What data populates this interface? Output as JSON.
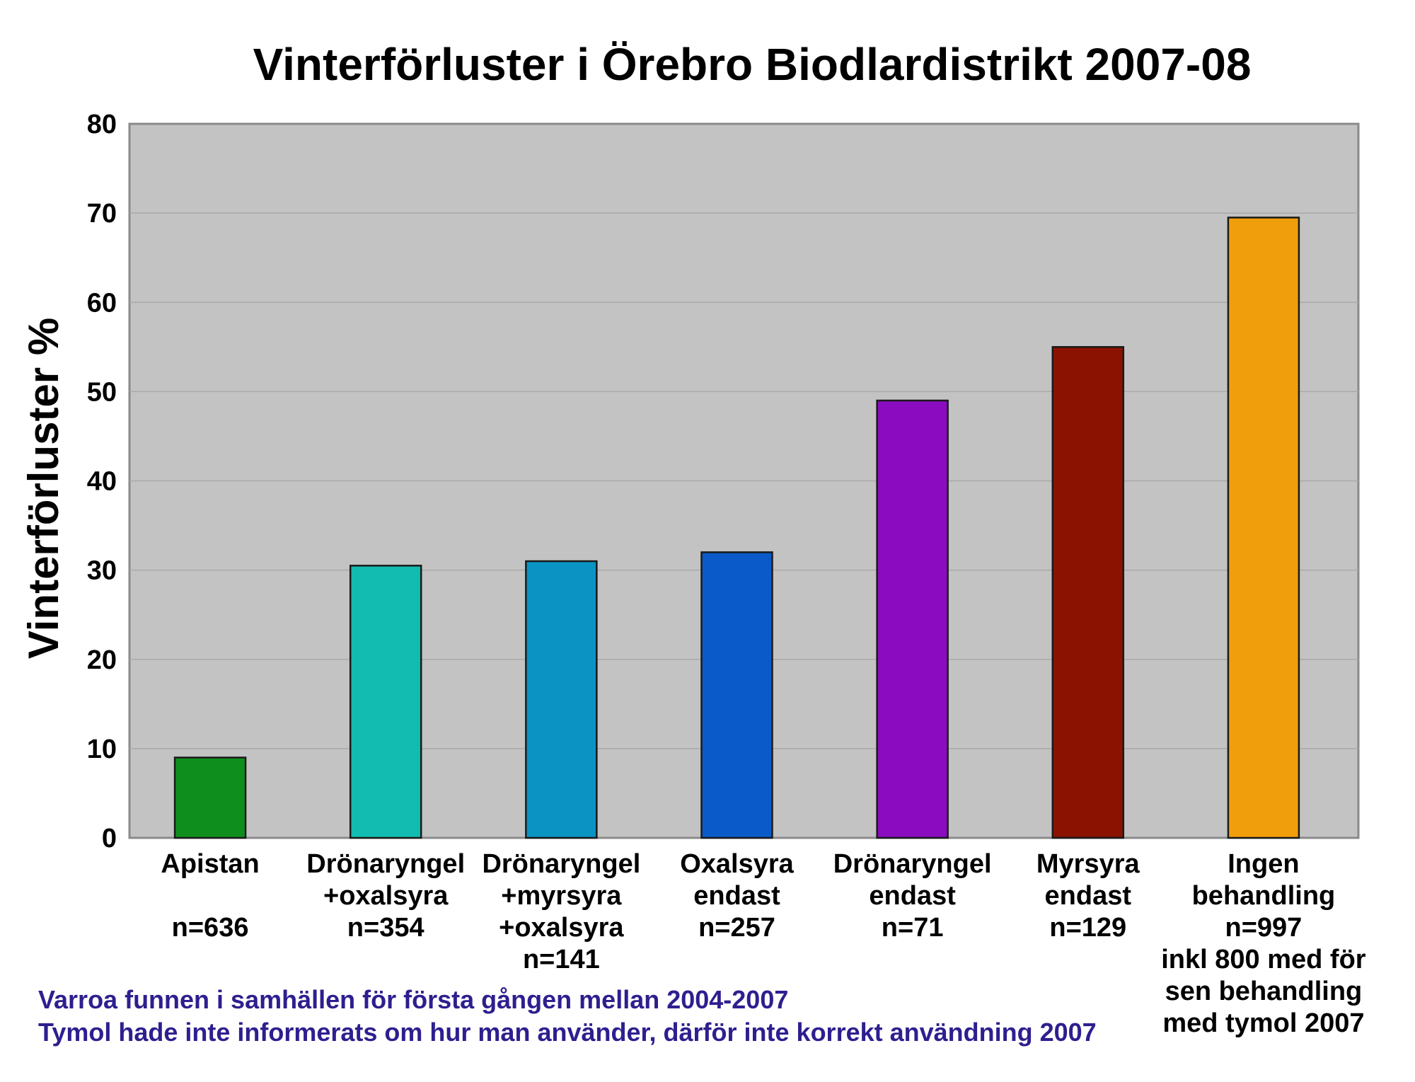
{
  "chart_data": {
    "type": "bar",
    "title": "Vinterförluster i Örebro Biodlardistrikt 2007-08",
    "ylabel": "Vinterförluster %",
    "xlabel": "",
    "ylim": [
      0,
      80
    ],
    "yticks": [
      0,
      10,
      20,
      30,
      40,
      50,
      60,
      70,
      80
    ],
    "grid": true,
    "categories": [
      [
        "Apistan",
        "",
        "n=636"
      ],
      [
        "Drönaryngel",
        "+oxalsyra",
        "n=354"
      ],
      [
        "Drönaryngel",
        "+myrsyra",
        "+oxalsyra",
        "n=141"
      ],
      [
        "Oxalsyra",
        "endast",
        "n=257"
      ],
      [
        "Drönaryngel",
        "endast",
        "n=71"
      ],
      [
        "Myrsyra",
        "endast",
        "n=129"
      ],
      [
        "Ingen",
        "behandling",
        "n=997",
        "inkl 800 med för",
        "sen behandling",
        "med tymol 2007"
      ]
    ],
    "values": [
      9,
      30.5,
      31,
      32,
      49,
      55,
      69.5
    ],
    "colors": [
      "#0e8f1d",
      "#12bcb0",
      "#0b93c4",
      "#0a5ac9",
      "#8a0bc0",
      "#8b1200",
      "#f09e0b"
    ],
    "plot_background": "#c3c3c3",
    "footnotes": [
      "Varroa funnen i samhällen för första gången mellan 2004-2007",
      "Tymol hade inte informerats om hur man använder, därför inte korrekt användning 2007"
    ],
    "footnote_color": "#2d1f8f"
  }
}
